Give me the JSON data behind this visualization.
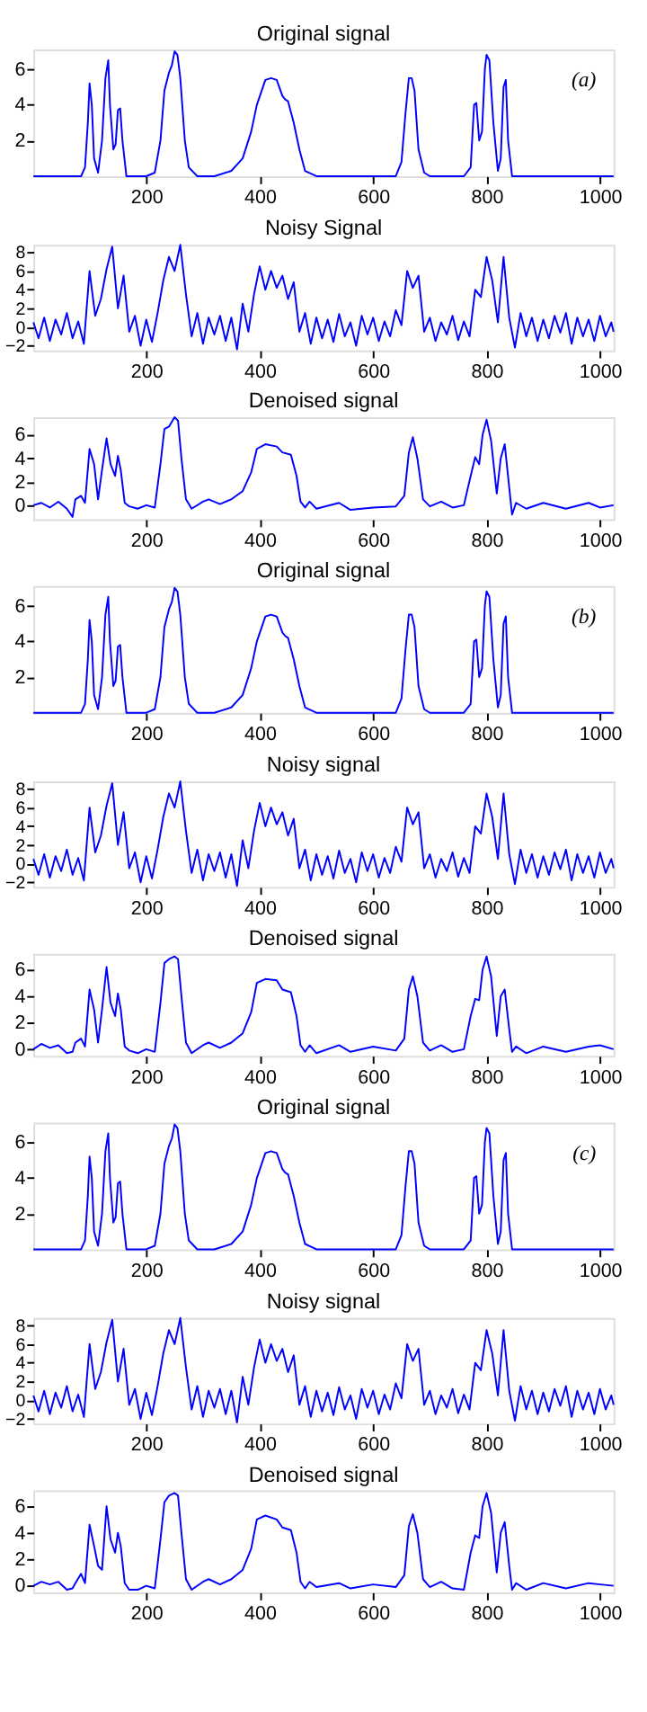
{
  "chart_data": [
    {
      "type": "line",
      "title": "Original signal",
      "annotations": [
        "(a)"
      ],
      "color": "#0000ff",
      "xlim": [
        1,
        1024
      ],
      "xticks": [
        200,
        400,
        600,
        800,
        1000
      ],
      "ylim": [
        0,
        7.1
      ],
      "yticks": [
        2,
        4,
        6
      ],
      "x": [
        1,
        85,
        92,
        97,
        100,
        104,
        108,
        115,
        122,
        128,
        133,
        136,
        142,
        146,
        150,
        154,
        158,
        165,
        200,
        215,
        225,
        232,
        240,
        245,
        250,
        255,
        260,
        268,
        275,
        290,
        320,
        350,
        370,
        385,
        395,
        410,
        420,
        430,
        440,
        445,
        450,
        460,
        470,
        480,
        500,
        520,
        640,
        650,
        657,
        663,
        668,
        673,
        680,
        690,
        700,
        760,
        772,
        778,
        782,
        787,
        792,
        797,
        800,
        805,
        812,
        820,
        825,
        830,
        834,
        838,
        845,
        1024
      ],
      "values": [
        0,
        0,
        0.5,
        3,
        5.2,
        4,
        1,
        0.2,
        2,
        5.5,
        6.5,
        4,
        1.5,
        1.8,
        3.7,
        3.8,
        2,
        0,
        0,
        0.2,
        2,
        4.8,
        5.8,
        6.2,
        7,
        6.8,
        5.5,
        2,
        0.5,
        0,
        0,
        0.3,
        1.0,
        2.5,
        4.0,
        5.4,
        5.5,
        5.4,
        4.5,
        4.3,
        4.2,
        3,
        1.5,
        0.3,
        0,
        0,
        0,
        0.8,
        3.5,
        5.5,
        5.5,
        4.8,
        1.5,
        0.2,
        0,
        0,
        0.5,
        4.0,
        4.1,
        2.0,
        2.5,
        6.0,
        6.8,
        6.5,
        3,
        0.3,
        1,
        5.0,
        5.4,
        2,
        0,
        0
      ]
    },
    {
      "type": "line",
      "title": "Noisy Signal",
      "color": "#0000ff",
      "xlim": [
        1,
        1024
      ],
      "xticks": [
        200,
        400,
        600,
        800,
        1000
      ],
      "ylim": [
        -2.5,
        8.8
      ],
      "yticks": [
        -2,
        0,
        2,
        4,
        6,
        8
      ],
      "x": [
        1,
        10,
        20,
        30,
        40,
        50,
        60,
        70,
        80,
        90,
        100,
        110,
        120,
        130,
        140,
        150,
        160,
        170,
        180,
        190,
        200,
        210,
        220,
        230,
        240,
        250,
        260,
        270,
        280,
        290,
        300,
        310,
        320,
        330,
        340,
        350,
        360,
        370,
        380,
        390,
        400,
        410,
        420,
        430,
        440,
        450,
        460,
        470,
        480,
        490,
        500,
        510,
        520,
        530,
        540,
        550,
        560,
        570,
        580,
        590,
        600,
        610,
        620,
        630,
        640,
        650,
        660,
        670,
        680,
        690,
        700,
        710,
        720,
        730,
        740,
        750,
        760,
        770,
        780,
        790,
        800,
        810,
        820,
        830,
        840,
        850,
        860,
        870,
        880,
        890,
        900,
        910,
        920,
        930,
        940,
        950,
        960,
        970,
        980,
        990,
        1000,
        1010,
        1020,
        1024
      ],
      "values": [
        0.5,
        -1.2,
        1.0,
        -1.5,
        0.8,
        -0.8,
        1.5,
        -1.2,
        0.6,
        -1.8,
        6.0,
        1.2,
        3.0,
        6.2,
        8.6,
        2.0,
        5.5,
        -0.5,
        1.2,
        -2.0,
        0.8,
        -1.6,
        1.5,
        5.0,
        7.5,
        6.0,
        8.8,
        3.5,
        -1.0,
        1.5,
        -1.8,
        1.0,
        -0.8,
        1.2,
        -1.5,
        1.0,
        -2.4,
        2.5,
        -0.5,
        3.5,
        6.5,
        4.0,
        6.0,
        4.2,
        5.5,
        3.0,
        4.8,
        -0.5,
        1.5,
        -1.8,
        1.0,
        -1.2,
        0.8,
        -1.6,
        1.4,
        -1.0,
        0.5,
        -2.0,
        1.2,
        -0.8,
        1.0,
        -1.5,
        0.6,
        -1.0,
        1.8,
        0.2,
        6.0,
        4.2,
        5.5,
        -0.5,
        1.0,
        -1.5,
        0.5,
        -0.8,
        1.2,
        -1.4,
        0.6,
        -1.0,
        4.0,
        3.2,
        7.5,
        5.0,
        0.5,
        7.5,
        1.0,
        -2.2,
        1.5,
        -1.0,
        1.0,
        -1.5,
        0.8,
        -1.2,
        1.2,
        -0.6,
        1.5,
        -1.8,
        1.0,
        -1.0,
        0.8,
        -1.5,
        1.2,
        -1.0,
        0.5,
        -0.5
      ]
    },
    {
      "type": "line",
      "title": "Denoised signal",
      "color": "#0000ff",
      "xlim": [
        1,
        1024
      ],
      "xticks": [
        200,
        400,
        600,
        800,
        1000
      ],
      "ylim": [
        -1.2,
        7.5
      ],
      "yticks": [
        0,
        2,
        4,
        6
      ],
      "x": [
        1,
        15,
        30,
        45,
        60,
        70,
        75,
        85,
        92,
        100,
        108,
        115,
        122,
        130,
        137,
        145,
        150,
        155,
        162,
        170,
        185,
        200,
        215,
        225,
        232,
        240,
        250,
        256,
        262,
        270,
        280,
        300,
        310,
        330,
        350,
        370,
        385,
        395,
        410,
        430,
        440,
        455,
        465,
        472,
        480,
        488,
        500,
        540,
        560,
        600,
        640,
        655,
        663,
        670,
        678,
        688,
        700,
        720,
        740,
        760,
        772,
        780,
        787,
        793,
        800,
        808,
        818,
        825,
        832,
        840,
        845,
        852,
        870,
        900,
        940,
        980,
        1000,
        1024
      ],
      "values": [
        0,
        0.2,
        -0.2,
        0.3,
        -0.3,
        -1.0,
        0.5,
        0.8,
        0.2,
        4.8,
        3.5,
        0.5,
        3.0,
        5.7,
        3.5,
        2.5,
        4.2,
        3.0,
        0.2,
        -0.1,
        -0.3,
        0,
        -0.2,
        3.5,
        6.5,
        6.7,
        7.5,
        7.2,
        4.0,
        0.5,
        -0.3,
        0.3,
        0.5,
        0.1,
        0.5,
        1.2,
        2.8,
        4.8,
        5.2,
        5.0,
        4.5,
        4.3,
        2.5,
        0.3,
        -0.2,
        0.3,
        -0.3,
        0.2,
        -0.4,
        -0.2,
        -0.1,
        0.8,
        4.5,
        5.8,
        4.0,
        0.5,
        -0.1,
        0.3,
        -0.2,
        0.0,
        2.5,
        4.1,
        3.5,
        6.0,
        7.3,
        5.5,
        1.0,
        4.0,
        5.2,
        1.5,
        -0.8,
        0.2,
        -0.3,
        0.2,
        -0.3,
        0.2,
        -0.2,
        0
      ]
    },
    {
      "type": "line",
      "title": "Original signal",
      "annotations": [
        "(b)"
      ],
      "color": "#0000ff",
      "xlim": [
        1,
        1024
      ],
      "xticks": [
        200,
        400,
        600,
        800,
        1000
      ],
      "ylim": [
        0,
        7.1
      ],
      "yticks": [
        2,
        4,
        6
      ],
      "x": [
        1,
        85,
        92,
        97,
        100,
        104,
        108,
        115,
        122,
        128,
        133,
        136,
        142,
        146,
        150,
        154,
        158,
        165,
        200,
        215,
        225,
        232,
        240,
        245,
        250,
        255,
        260,
        268,
        275,
        290,
        320,
        350,
        370,
        385,
        395,
        410,
        420,
        430,
        440,
        445,
        450,
        460,
        470,
        480,
        500,
        520,
        640,
        650,
        657,
        663,
        668,
        673,
        680,
        690,
        700,
        760,
        772,
        778,
        782,
        787,
        792,
        797,
        800,
        805,
        812,
        820,
        825,
        830,
        834,
        838,
        845,
        1024
      ],
      "values": [
        0,
        0,
        0.5,
        3,
        5.2,
        4,
        1,
        0.2,
        2,
        5.5,
        6.5,
        4,
        1.5,
        1.8,
        3.7,
        3.8,
        2,
        0,
        0,
        0.2,
        2,
        4.8,
        5.8,
        6.2,
        7,
        6.8,
        5.5,
        2,
        0.5,
        0,
        0,
        0.3,
        1.0,
        2.5,
        4.0,
        5.4,
        5.5,
        5.4,
        4.5,
        4.3,
        4.2,
        3,
        1.5,
        0.3,
        0,
        0,
        0,
        0.8,
        3.5,
        5.5,
        5.5,
        4.8,
        1.5,
        0.2,
        0,
        0,
        0.5,
        4.0,
        4.1,
        2.0,
        2.5,
        6.0,
        6.8,
        6.5,
        3,
        0.3,
        1,
        5.0,
        5.4,
        2,
        0,
        0
      ]
    },
    {
      "type": "line",
      "title": "Noisy signal",
      "color": "#0000ff",
      "xlim": [
        1,
        1024
      ],
      "xticks": [
        200,
        400,
        600,
        800,
        1000
      ],
      "ylim": [
        -2.5,
        8.8
      ],
      "yticks": [
        -2,
        0,
        2,
        4,
        6,
        8
      ],
      "x": [
        1,
        10,
        20,
        30,
        40,
        50,
        60,
        70,
        80,
        90,
        100,
        110,
        120,
        130,
        140,
        150,
        160,
        170,
        180,
        190,
        200,
        210,
        220,
        230,
        240,
        250,
        260,
        270,
        280,
        290,
        300,
        310,
        320,
        330,
        340,
        350,
        360,
        370,
        380,
        390,
        400,
        410,
        420,
        430,
        440,
        450,
        460,
        470,
        480,
        490,
        500,
        510,
        520,
        530,
        540,
        550,
        560,
        570,
        580,
        590,
        600,
        610,
        620,
        630,
        640,
        650,
        660,
        670,
        680,
        690,
        700,
        710,
        720,
        730,
        740,
        750,
        760,
        770,
        780,
        790,
        800,
        810,
        820,
        830,
        840,
        850,
        860,
        870,
        880,
        890,
        900,
        910,
        920,
        930,
        940,
        950,
        960,
        970,
        980,
        990,
        1000,
        1010,
        1020,
        1024
      ],
      "values": [
        0.5,
        -1.2,
        1.0,
        -1.5,
        0.8,
        -0.8,
        1.5,
        -1.2,
        0.6,
        -1.8,
        6.0,
        1.2,
        3.0,
        6.2,
        8.6,
        2.0,
        5.5,
        -0.5,
        1.2,
        -2.0,
        0.8,
        -1.6,
        1.5,
        5.0,
        7.5,
        6.0,
        8.8,
        3.5,
        -1.0,
        1.5,
        -1.8,
        1.0,
        -0.8,
        1.2,
        -1.5,
        1.0,
        -2.4,
        2.5,
        -0.5,
        3.5,
        6.5,
        4.0,
        6.0,
        4.2,
        5.5,
        3.0,
        4.8,
        -0.5,
        1.5,
        -1.8,
        1.0,
        -1.2,
        0.8,
        -1.6,
        1.4,
        -1.0,
        0.5,
        -2.0,
        1.2,
        -0.8,
        1.0,
        -1.5,
        0.6,
        -1.0,
        1.8,
        0.2,
        6.0,
        4.2,
        5.5,
        -0.5,
        1.0,
        -1.5,
        0.5,
        -0.8,
        1.2,
        -1.4,
        0.6,
        -1.0,
        4.0,
        3.2,
        7.5,
        5.0,
        0.5,
        7.5,
        1.0,
        -2.2,
        1.5,
        -1.0,
        1.0,
        -1.5,
        0.8,
        -1.2,
        1.2,
        -0.6,
        1.5,
        -1.8,
        1.0,
        -1.0,
        0.8,
        -1.5,
        1.2,
        -1.0,
        0.5,
        -0.5
      ]
    },
    {
      "type": "line",
      "title": "Denoised signal",
      "color": "#0000ff",
      "xlim": [
        1,
        1024
      ],
      "xticks": [
        200,
        400,
        600,
        800,
        1000
      ],
      "ylim": [
        -0.5,
        7.2
      ],
      "yticks": [
        0,
        2,
        4,
        6
      ],
      "x": [
        1,
        15,
        30,
        45,
        60,
        70,
        75,
        85,
        92,
        100,
        108,
        115,
        122,
        130,
        137,
        145,
        150,
        155,
        162,
        170,
        185,
        200,
        215,
        225,
        232,
        240,
        250,
        256,
        262,
        270,
        280,
        300,
        310,
        330,
        350,
        370,
        385,
        395,
        410,
        430,
        440,
        455,
        465,
        472,
        480,
        488,
        500,
        540,
        560,
        600,
        640,
        655,
        663,
        670,
        678,
        688,
        700,
        720,
        740,
        760,
        772,
        780,
        787,
        793,
        800,
        808,
        818,
        825,
        832,
        840,
        845,
        852,
        870,
        900,
        940,
        980,
        1000,
        1024
      ],
      "values": [
        0,
        0.4,
        0.1,
        0.3,
        -0.3,
        -0.2,
        0.5,
        0.8,
        0.2,
        4.5,
        3.0,
        0.5,
        3.0,
        6.2,
        3.5,
        2.5,
        4.2,
        3.0,
        0.2,
        -0.1,
        -0.3,
        0,
        -0.2,
        3.5,
        6.5,
        6.8,
        7.0,
        6.8,
        4.0,
        0.5,
        -0.3,
        0.3,
        0.5,
        0.1,
        0.5,
        1.2,
        2.8,
        5.0,
        5.3,
        5.2,
        4.5,
        4.3,
        2.5,
        0.3,
        -0.2,
        0.3,
        -0.3,
        0.3,
        -0.2,
        0.2,
        -0.1,
        0.8,
        4.5,
        5.5,
        4.0,
        0.5,
        -0.1,
        0.3,
        -0.2,
        0.0,
        2.5,
        3.8,
        3.7,
        6.0,
        7.0,
        5.5,
        1.0,
        4.0,
        4.5,
        1.5,
        -0.2,
        0.2,
        -0.3,
        0.2,
        -0.2,
        0.2,
        0.3,
        0
      ]
    },
    {
      "type": "line",
      "title": "Original signal",
      "annotations": [
        "(c)"
      ],
      "color": "#0000ff",
      "xlim": [
        1,
        1024
      ],
      "xticks": [
        200,
        400,
        600,
        800,
        1000
      ],
      "ylim": [
        0,
        7.1
      ],
      "yticks": [
        2,
        4,
        6
      ],
      "x": [
        1,
        85,
        92,
        97,
        100,
        104,
        108,
        115,
        122,
        128,
        133,
        136,
        142,
        146,
        150,
        154,
        158,
        165,
        200,
        215,
        225,
        232,
        240,
        245,
        250,
        255,
        260,
        268,
        275,
        290,
        320,
        350,
        370,
        385,
        395,
        410,
        420,
        430,
        440,
        445,
        450,
        460,
        470,
        480,
        500,
        520,
        640,
        650,
        657,
        663,
        668,
        673,
        680,
        690,
        700,
        760,
        772,
        778,
        782,
        787,
        792,
        797,
        800,
        805,
        812,
        820,
        825,
        830,
        834,
        838,
        845,
        1024
      ],
      "values": [
        0,
        0,
        0.5,
        3,
        5.2,
        4,
        1,
        0.2,
        2,
        5.5,
        6.5,
        4,
        1.5,
        1.8,
        3.7,
        3.8,
        2,
        0,
        0,
        0.2,
        2,
        4.8,
        5.8,
        6.2,
        7,
        6.8,
        5.5,
        2,
        0.5,
        0,
        0,
        0.3,
        1.0,
        2.5,
        4.0,
        5.4,
        5.5,
        5.4,
        4.5,
        4.3,
        4.2,
        3,
        1.5,
        0.3,
        0,
        0,
        0,
        0.8,
        3.5,
        5.5,
        5.5,
        4.8,
        1.5,
        0.2,
        0,
        0,
        0.5,
        4.0,
        4.1,
        2.0,
        2.5,
        6.0,
        6.8,
        6.5,
        3,
        0.3,
        1,
        5.0,
        5.4,
        2,
        0,
        0
      ]
    },
    {
      "type": "line",
      "title": "Noisy signal",
      "color": "#0000ff",
      "xlim": [
        1,
        1024
      ],
      "xticks": [
        200,
        400,
        600,
        800,
        1000
      ],
      "ylim": [
        -2.5,
        8.8
      ],
      "yticks": [
        -2,
        0,
        2,
        4,
        6,
        8
      ],
      "x": [
        1,
        10,
        20,
        30,
        40,
        50,
        60,
        70,
        80,
        90,
        100,
        110,
        120,
        130,
        140,
        150,
        160,
        170,
        180,
        190,
        200,
        210,
        220,
        230,
        240,
        250,
        260,
        270,
        280,
        290,
        300,
        310,
        320,
        330,
        340,
        350,
        360,
        370,
        380,
        390,
        400,
        410,
        420,
        430,
        440,
        450,
        460,
        470,
        480,
        490,
        500,
        510,
        520,
        530,
        540,
        550,
        560,
        570,
        580,
        590,
        600,
        610,
        620,
        630,
        640,
        650,
        660,
        670,
        680,
        690,
        700,
        710,
        720,
        730,
        740,
        750,
        760,
        770,
        780,
        790,
        800,
        810,
        820,
        830,
        840,
        850,
        860,
        870,
        880,
        890,
        900,
        910,
        920,
        930,
        940,
        950,
        960,
        970,
        980,
        990,
        1000,
        1010,
        1020,
        1024
      ],
      "values": [
        0.5,
        -1.2,
        1.0,
        -1.5,
        0.8,
        -0.8,
        1.5,
        -1.2,
        0.6,
        -1.8,
        6.0,
        1.2,
        3.0,
        6.2,
        8.6,
        2.0,
        5.5,
        -0.5,
        1.2,
        -2.0,
        0.8,
        -1.6,
        1.5,
        5.0,
        7.5,
        6.0,
        8.8,
        3.5,
        -1.0,
        1.5,
        -1.8,
        1.0,
        -0.8,
        1.2,
        -1.5,
        1.0,
        -2.4,
        2.5,
        -0.5,
        3.5,
        6.5,
        4.0,
        6.0,
        4.2,
        5.5,
        3.0,
        4.8,
        -0.5,
        1.5,
        -1.8,
        1.0,
        -1.2,
        0.8,
        -1.6,
        1.4,
        -1.0,
        0.5,
        -2.0,
        1.2,
        -0.8,
        1.0,
        -1.5,
        0.6,
        -1.0,
        1.8,
        0.2,
        6.0,
        4.2,
        5.5,
        -0.5,
        1.0,
        -1.5,
        0.5,
        -0.8,
        1.2,
        -1.4,
        0.6,
        -1.0,
        4.0,
        3.2,
        7.5,
        5.0,
        0.5,
        7.5,
        1.0,
        -2.2,
        1.5,
        -1.0,
        1.0,
        -1.5,
        0.8,
        -1.2,
        1.2,
        -0.6,
        1.5,
        -1.8,
        1.0,
        -1.0,
        0.8,
        -1.5,
        1.2,
        -1.0,
        0.5,
        -0.5
      ]
    },
    {
      "type": "line",
      "title": "Denoised signal",
      "color": "#0000ff",
      "xlim": [
        1,
        1024
      ],
      "xticks": [
        200,
        400,
        600,
        800,
        1000
      ],
      "ylim": [
        -0.5,
        7.2
      ],
      "yticks": [
        0,
        2,
        4,
        6
      ],
      "x": [
        1,
        15,
        30,
        45,
        60,
        70,
        75,
        85,
        92,
        100,
        108,
        115,
        122,
        130,
        137,
        145,
        150,
        155,
        162,
        170,
        185,
        200,
        215,
        225,
        232,
        240,
        250,
        256,
        262,
        270,
        280,
        300,
        310,
        330,
        350,
        370,
        385,
        395,
        410,
        430,
        440,
        455,
        465,
        472,
        480,
        488,
        500,
        540,
        560,
        600,
        640,
        655,
        663,
        670,
        678,
        688,
        700,
        720,
        740,
        760,
        772,
        780,
        787,
        793,
        800,
        808,
        818,
        825,
        832,
        840,
        845,
        852,
        870,
        900,
        940,
        980,
        1000,
        1024
      ],
      "values": [
        0,
        0.3,
        0.1,
        0.3,
        -0.3,
        -0.2,
        0.2,
        0.9,
        0.2,
        4.6,
        3.0,
        1.5,
        1.2,
        6.0,
        3.5,
        2.5,
        4.0,
        3.0,
        0.2,
        -0.3,
        -0.3,
        0,
        -0.2,
        3.5,
        6.3,
        6.8,
        7.0,
        6.8,
        4.0,
        0.5,
        -0.3,
        0.3,
        0.5,
        0.1,
        0.5,
        1.2,
        2.8,
        5.0,
        5.3,
        5.0,
        4.4,
        4.2,
        2.5,
        0.3,
        -0.2,
        0.3,
        -0.1,
        0.2,
        -0.2,
        0.1,
        -0.1,
        0.8,
        4.5,
        5.4,
        4.0,
        0.5,
        -0.1,
        0.3,
        -0.2,
        -0.3,
        2.5,
        3.8,
        3.6,
        6.0,
        7.0,
        5.5,
        1.0,
        4.0,
        4.8,
        1.5,
        -0.3,
        0.2,
        -0.3,
        0.2,
        -0.2,
        0.2,
        0.1,
        0
      ]
    }
  ]
}
